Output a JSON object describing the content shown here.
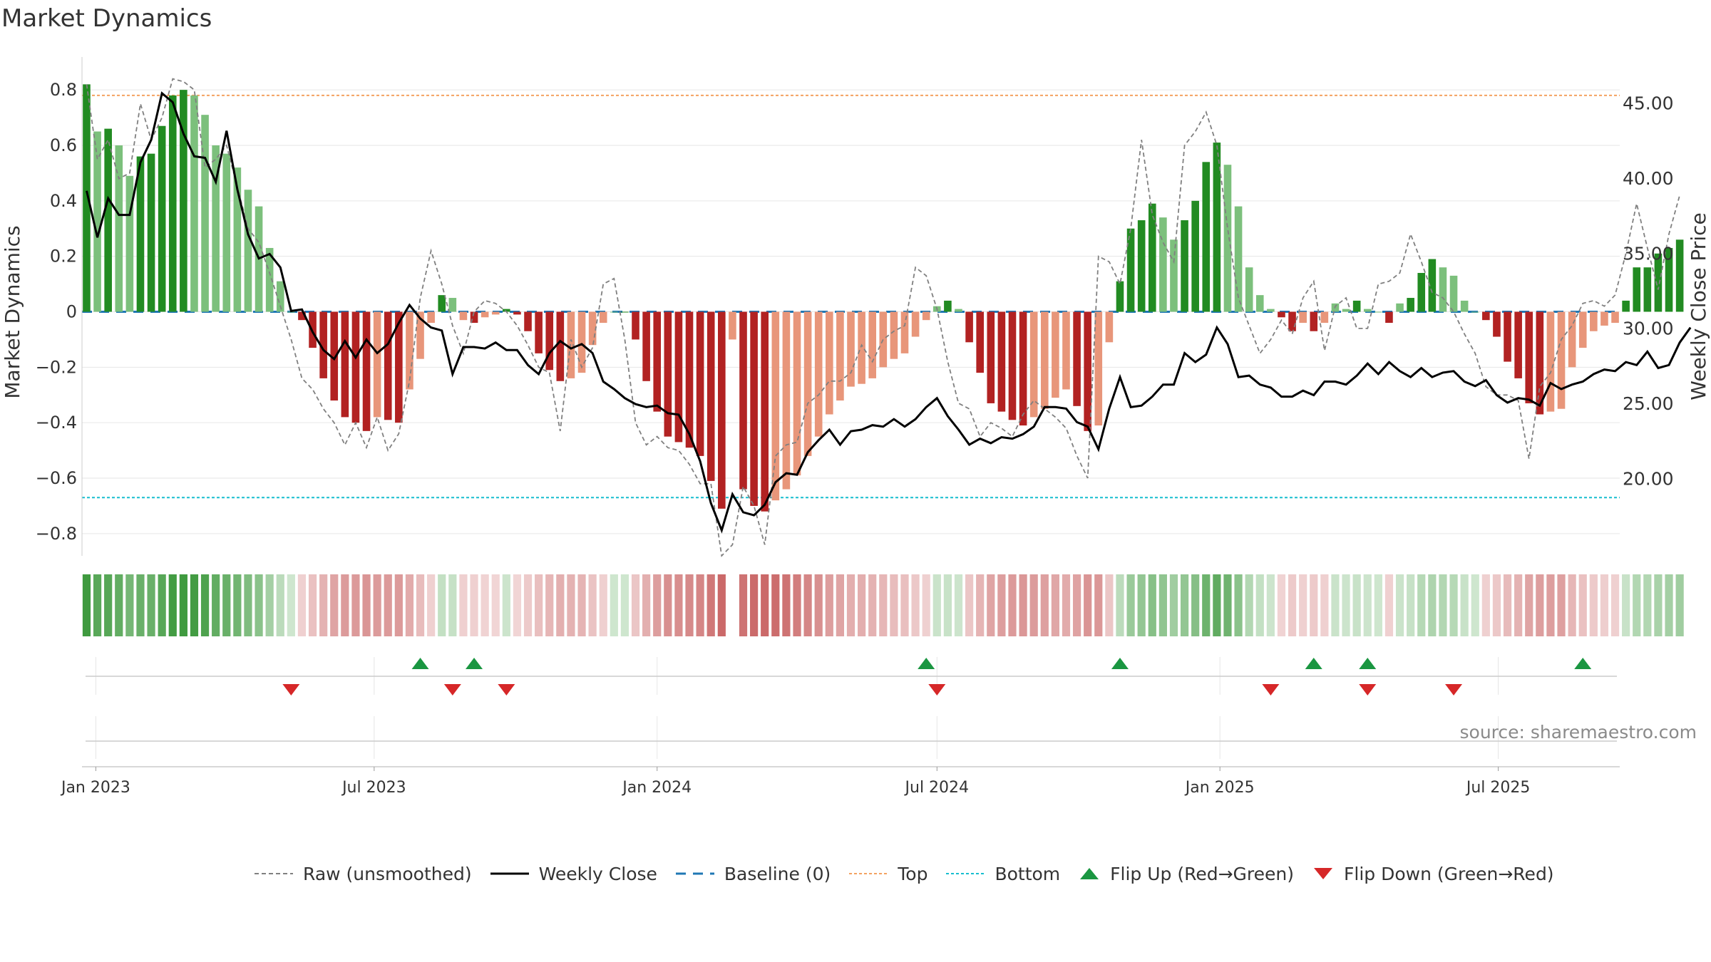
{
  "title": "Market Dynamics",
  "source": "source: sharemaestro.com",
  "colors": {
    "green_strong": "#228B22",
    "green_light": "#7CC07C",
    "red_strong": "#B22222",
    "red_light": "#E8967A",
    "close_line": "#000000",
    "raw_line": "#808080",
    "baseline": "#1f77b4",
    "top_line": "#F4A261",
    "bottom_line": "#17becf",
    "flip_up": "#1a9641",
    "flip_down": "#d62728"
  },
  "legend": [
    {
      "key": "raw",
      "label": "Raw (unsmoothed)",
      "icon": "dashed-gray-line-icon"
    },
    {
      "key": "close",
      "label": "Weekly Close",
      "icon": "solid-black-line-icon"
    },
    {
      "key": "baseline",
      "label": "Baseline (0)",
      "icon": "dashed-blue-line-icon"
    },
    {
      "key": "top",
      "label": "Top",
      "icon": "dotted-orange-line-icon"
    },
    {
      "key": "bottom",
      "label": "Bottom",
      "icon": "dotted-cyan-line-icon"
    },
    {
      "key": "flip_up",
      "label": "Flip Up (Red→Green)",
      "icon": "triangle-up-icon"
    },
    {
      "key": "flip_down",
      "label": "Flip Down (Green→Red)",
      "icon": "triangle-down-icon"
    }
  ],
  "chart_data": {
    "type": "bar",
    "title": "Market Dynamics",
    "ylabel": "Market Dynamics",
    "y2label": "Weekly Close Price",
    "ylim": [
      -0.88,
      0.88
    ],
    "y2lim": [
      14.9,
      47.4
    ],
    "y_ticks": [
      0.8,
      0.6,
      0.4,
      0.2,
      0,
      -0.2,
      -0.4,
      -0.6,
      -0.8
    ],
    "y_tick_labels": [
      "0.8",
      "0.6",
      "0.4",
      "0.2",
      "0",
      "−0.2",
      "−0.4",
      "−0.6",
      "−0.8"
    ],
    "y2_ticks": [
      45,
      40,
      35,
      30,
      25,
      20
    ],
    "y2_tick_labels": [
      "45.00",
      "40.00",
      "35.00",
      "30.00",
      "25.00",
      "20.00"
    ],
    "x_ticks": [
      {
        "date": "2023-01-01",
        "label": "Jan 2023"
      },
      {
        "date": "2023-07-01",
        "label": "Jul 2023"
      },
      {
        "date": "2024-01-01",
        "label": "Jan 2024"
      },
      {
        "date": "2024-07-01",
        "label": "Jul 2024"
      },
      {
        "date": "2025-01-01",
        "label": "Jan 2025"
      },
      {
        "date": "2025-07-01",
        "label": "Jul 2025"
      }
    ],
    "top_level": 0.78,
    "bottom_level": -0.67,
    "baseline": 0,
    "grid": true,
    "first_week": "2022-12-26",
    "week_step_days": 7,
    "bars": [
      0.82,
      0.65,
      0.66,
      0.6,
      0.49,
      0.56,
      0.57,
      0.67,
      0.78,
      0.8,
      0.78,
      0.71,
      0.6,
      0.57,
      0.52,
      0.44,
      0.38,
      0.23,
      0.11,
      0,
      -0.03,
      -0.13,
      -0.24,
      -0.32,
      -0.38,
      -0.4,
      -0.43,
      -0.38,
      -0.39,
      -0.4,
      -0.28,
      -0.17,
      -0.04,
      0.06,
      0.05,
      -0.03,
      -0.04,
      -0.02,
      -0.01,
      0.01,
      -0.01,
      -0.07,
      -0.15,
      -0.21,
      -0.25,
      -0.24,
      -0.22,
      -0.12,
      -0.04,
      0,
      0,
      -0.1,
      -0.25,
      -0.36,
      -0.45,
      -0.47,
      -0.49,
      -0.52,
      -0.61,
      -0.71,
      -0.1,
      -0.64,
      -0.7,
      -0.72,
      -0.68,
      -0.64,
      -0.59,
      -0.52,
      -0.45,
      -0.37,
      -0.32,
      -0.27,
      -0.26,
      -0.24,
      -0.2,
      -0.17,
      -0.15,
      -0.09,
      -0.03,
      0.02,
      0.04,
      0.01,
      -0.11,
      -0.22,
      -0.33,
      -0.36,
      -0.39,
      -0.41,
      -0.38,
      -0.35,
      -0.31,
      -0.28,
      -0.34,
      -0.43,
      -0.41,
      -0.11,
      0.11,
      0.3,
      0.33,
      0.39,
      0.34,
      0.26,
      0.33,
      0.4,
      0.54,
      0.61,
      0.53,
      0.38,
      0.16,
      0.06,
      0.01,
      -0.02,
      -0.07,
      -0.04,
      -0.07,
      -0.04,
      0.03,
      0.01,
      0.04,
      0.01,
      0,
      -0.04,
      0.03,
      0.05,
      0.14,
      0.19,
      0.16,
      0.13,
      0.04,
      0,
      -0.03,
      -0.09,
      -0.18,
      -0.24,
      -0.33,
      -0.37,
      -0.36,
      -0.35,
      -0.2,
      -0.13,
      -0.07,
      -0.05,
      -0.04,
      0.04,
      0.16,
      0.16,
      0.21,
      0.23,
      0.26
    ],
    "raw": [
      0.82,
      0.55,
      0.62,
      0.48,
      0.5,
      0.75,
      0.62,
      0.7,
      0.84,
      0.83,
      0.8,
      0.52,
      0.55,
      0.6,
      0.45,
      0.3,
      0.25,
      0.14,
      0.02,
      -0.1,
      -0.24,
      -0.28,
      -0.35,
      -0.4,
      -0.48,
      -0.4,
      -0.49,
      -0.38,
      -0.5,
      -0.44,
      -0.25,
      0.05,
      0.22,
      0.1,
      -0.05,
      -0.15,
      0,
      0.04,
      0.03,
      0,
      -0.05,
      -0.12,
      -0.2,
      -0.22,
      -0.43,
      -0.1,
      -0.2,
      -0.13,
      0.1,
      0.12,
      -0.1,
      -0.4,
      -0.48,
      -0.45,
      -0.49,
      -0.5,
      -0.55,
      -0.62,
      -0.62,
      -0.88,
      -0.84,
      -0.63,
      -0.7,
      -0.84,
      -0.52,
      -0.48,
      -0.47,
      -0.33,
      -0.3,
      -0.25,
      -0.25,
      -0.22,
      -0.12,
      -0.18,
      -0.1,
      -0.07,
      -0.05,
      0.16,
      0.13,
      0.01,
      -0.18,
      -0.33,
      -0.35,
      -0.45,
      -0.4,
      -0.42,
      -0.45,
      -0.37,
      -0.32,
      -0.35,
      -0.38,
      -0.42,
      -0.52,
      -0.6,
      0.2,
      0.18,
      0.1,
      0.3,
      0.62,
      0.35,
      0.25,
      0.18,
      0.6,
      0.65,
      0.72,
      0.6,
      0.3,
      0.05,
      -0.05,
      -0.15,
      -0.1,
      -0.03,
      -0.08,
      0.05,
      0.11,
      -0.14,
      0.02,
      0.05,
      -0.06,
      -0.06,
      0.1,
      0.11,
      0.14,
      0.28,
      0.18,
      0.07,
      0.05,
      0,
      -0.08,
      -0.15,
      -0.27,
      -0.3,
      -0.3,
      -0.32,
      -0.53,
      -0.27,
      -0.22,
      -0.1,
      -0.05,
      0.03,
      0.04,
      0.02,
      0.06,
      0.21,
      0.39,
      0.23,
      0.08,
      0.28,
      0.42
    ],
    "close": [
      39.2,
      36.1,
      38.7,
      37.6,
      37.6,
      41.1,
      42.6,
      45.7,
      45.1,
      43.0,
      41.5,
      41.4,
      39.8,
      43.2,
      39.3,
      36.3,
      34.7,
      35.0,
      34.1,
      31.2,
      31.3,
      29.8,
      28.6,
      28.0,
      29.2,
      28.1,
      29.3,
      28.4,
      29.0,
      30.4,
      31.6,
      30.7,
      30.1,
      29.9,
      27.0,
      28.8,
      28.8,
      28.7,
      29.1,
      28.6,
      28.6,
      27.6,
      27.0,
      28.4,
      29.2,
      28.7,
      29.0,
      28.4,
      26.5,
      26.0,
      25.4,
      25.0,
      24.8,
      24.9,
      24.4,
      24.3,
      23.0,
      21.2,
      18.4,
      16.6,
      19.0,
      17.8,
      17.6,
      18.3,
      19.8,
      20.4,
      20.3,
      21.8,
      22.6,
      23.3,
      22.3,
      23.2,
      23.3,
      23.6,
      23.5,
      24.0,
      23.5,
      24.0,
      24.8,
      25.4,
      24.2,
      23.3,
      22.3,
      22.7,
      22.4,
      22.8,
      22.7,
      23.0,
      23.5,
      24.8,
      24.8,
      24.7,
      23.8,
      23.5,
      22.0,
      24.7,
      26.8,
      24.8,
      24.9,
      25.5,
      26.3,
      26.3,
      28.4,
      27.8,
      28.3,
      30.1,
      29.0,
      26.8,
      26.9,
      26.3,
      26.1,
      25.5,
      25.5,
      25.9,
      25.6,
      26.5,
      26.5,
      26.3,
      26.9,
      27.7,
      27.0,
      27.8,
      27.2,
      26.8,
      27.4,
      26.8,
      27.1,
      27.2,
      26.5,
      26.2,
      26.6,
      25.6,
      25.1,
      25.4,
      25.3,
      24.9,
      26.4,
      26.0,
      26.3,
      26.5,
      27.0,
      27.3,
      27.2,
      27.8,
      27.6,
      28.5,
      27.4,
      27.6,
      29.1,
      30.1
    ],
    "gap_week": 60,
    "flips_up": [
      "2023-07-31",
      "2023-09-04",
      "2024-06-24",
      "2024-10-28",
      "2025-03-03",
      "2025-04-07",
      "2025-08-25"
    ],
    "flips_down": [
      "2023-05-08",
      "2023-08-21",
      "2023-09-25",
      "2024-07-01",
      "2025-02-03",
      "2025-04-07",
      "2025-06-02"
    ]
  }
}
